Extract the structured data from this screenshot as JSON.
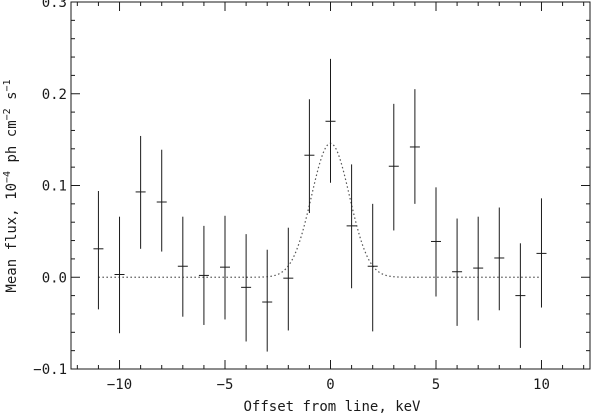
{
  "chart_data": {
    "type": "scatter",
    "title": "",
    "xlabel": "Offset from line, keV",
    "ylabel": {
      "prefix": "Mean flux, 10",
      "exp1": "−4",
      "mid": " ph cm",
      "exp2": "−2",
      "mid2": " s",
      "exp3": "−1"
    },
    "xlim": [
      -12.3,
      12.3
    ],
    "ylim": [
      -0.1,
      0.3
    ],
    "x_ticks": [
      -10,
      -5,
      0,
      5,
      10
    ],
    "x_tick_labels": [
      "−10",
      "−5",
      "0",
      "5",
      "10"
    ],
    "x_minor_step": 1,
    "y_ticks": [
      -0.1,
      0.0,
      0.1,
      0.2,
      0.3
    ],
    "y_tick_labels": [
      "−0.1",
      "0.0",
      "0.1",
      "0.2",
      "0.3"
    ],
    "y_minor_step": 0.02,
    "grid": false,
    "series": [
      {
        "style": "crosses-with-error-bars",
        "x": [
          -11,
          -10,
          -9,
          -8,
          -7,
          -6,
          -5,
          -4,
          -3,
          -2,
          -1,
          0,
          1,
          2,
          3,
          4,
          5,
          6,
          7,
          8,
          9,
          10
        ],
        "y": [
          0.031,
          0.003,
          0.093,
          0.082,
          0.012,
          0.002,
          0.011,
          -0.011,
          -0.027,
          -0.001,
          0.133,
          0.17,
          0.056,
          0.012,
          0.121,
          0.142,
          0.039,
          0.006,
          0.01,
          0.021,
          -0.02,
          0.026
        ],
        "y_low": [
          -0.035,
          -0.061,
          0.031,
          0.028,
          -0.043,
          -0.052,
          -0.046,
          -0.07,
          -0.081,
          -0.058,
          0.07,
          0.103,
          -0.012,
          -0.059,
          0.051,
          0.08,
          -0.021,
          -0.053,
          -0.047,
          -0.036,
          -0.077,
          -0.033
        ],
        "y_high": [
          0.094,
          0.066,
          0.154,
          0.139,
          0.066,
          0.056,
          0.067,
          0.047,
          0.03,
          0.054,
          0.194,
          0.238,
          0.123,
          0.08,
          0.189,
          0.205,
          0.098,
          0.064,
          0.066,
          0.076,
          0.037,
          0.086
        ]
      },
      {
        "style": "dotted-model",
        "model": "gaussian",
        "amplitude": 0.146,
        "center": 0.0,
        "sigma": 0.9,
        "baseline": 0.0
      }
    ],
    "colors": {
      "axis": "#1a1a1a",
      "data": "#1a1a1a",
      "model": "#555555"
    }
  }
}
